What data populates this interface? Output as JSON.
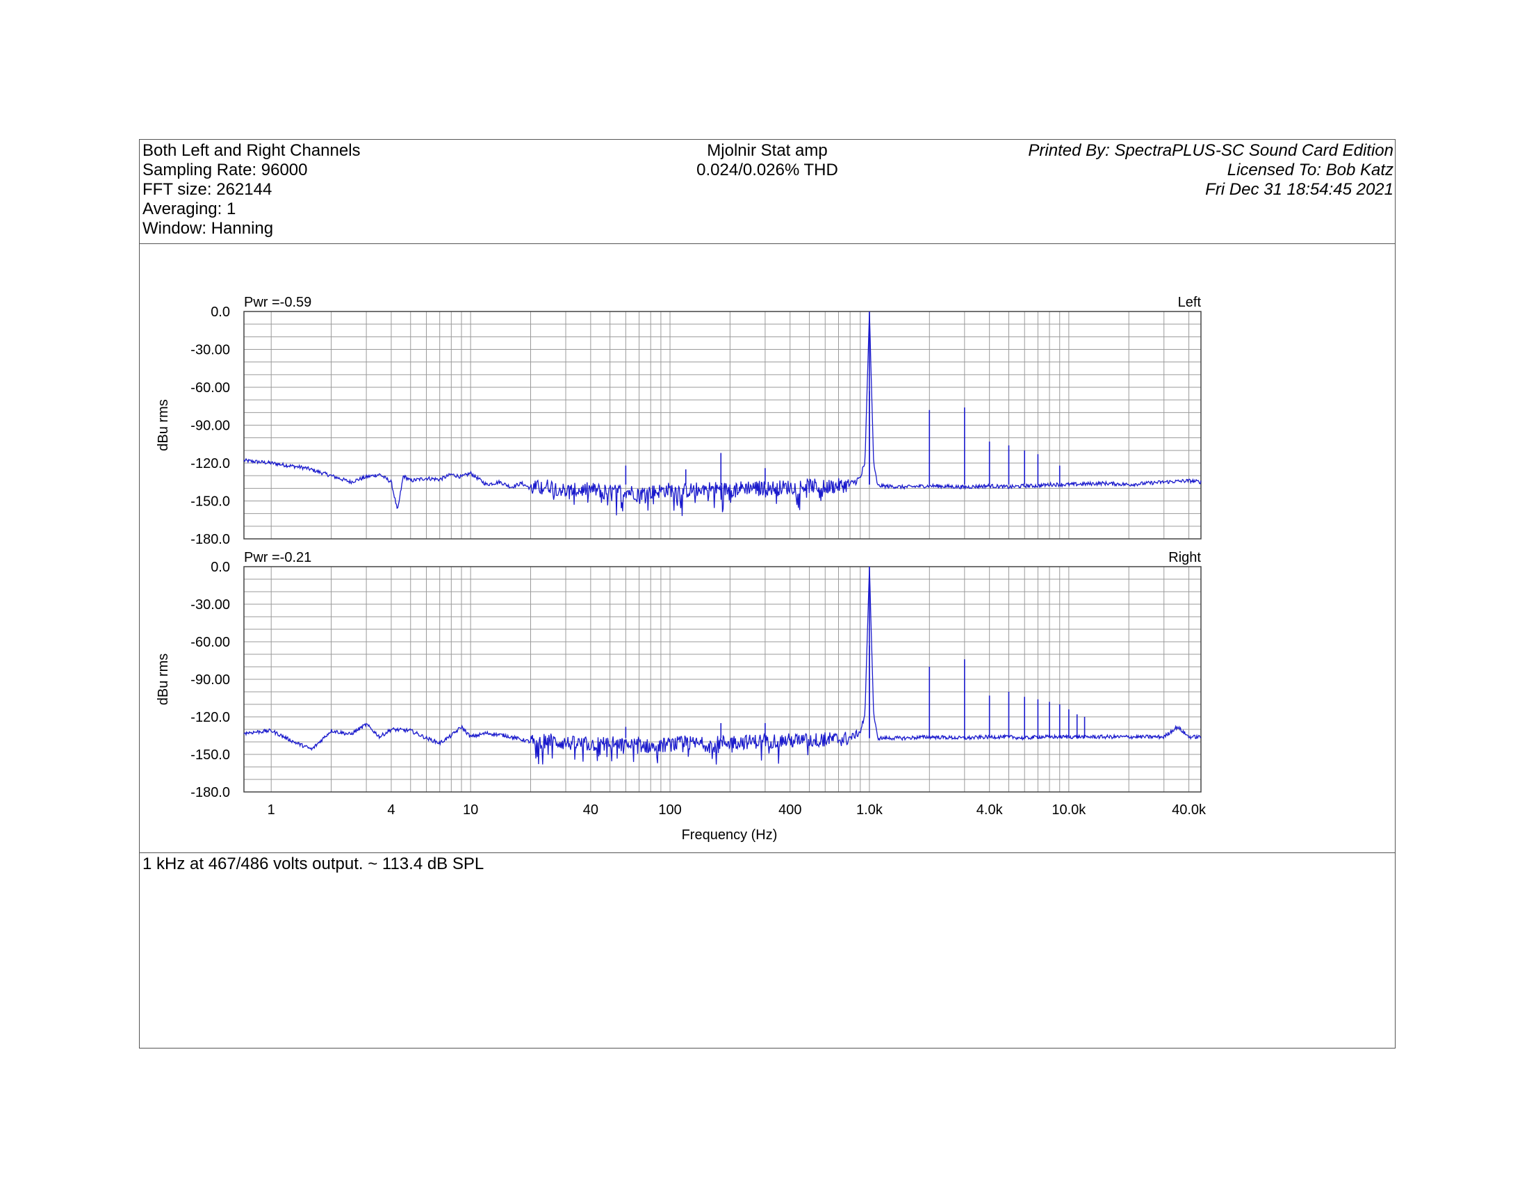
{
  "header": {
    "left": [
      "Both Left and Right Channels",
      "Sampling Rate: 96000",
      "FFT size: 262144",
      "Averaging: 1",
      "Window: Hanning"
    ],
    "center": [
      "Mjolnir Stat amp",
      "0.024/0.026% THD"
    ],
    "right": [
      "Printed By: SpectraPLUS-SC Sound Card Edition",
      "Licensed To: Bob Katz",
      "Fri Dec 31 18:54:45 2021"
    ]
  },
  "notes": "1 kHz at 467/486 volts output. ~ 113.4 dB SPL",
  "colors": {
    "trace": "#1a1acc",
    "grid": "#9a9a9a",
    "frame": "#444444"
  },
  "chart_data": [
    {
      "type": "line",
      "channel": "Left",
      "power_label": "Pwr =-0.59",
      "ylabel": "dBu rms",
      "xlabel": "",
      "xscale": "log",
      "xlim": [
        0.73,
        46000
      ],
      "ylim": [
        -180,
        0
      ],
      "yticks": [
        0,
        -30,
        -60,
        -90,
        -120,
        -150,
        -180
      ],
      "ytick_labels": [
        "0.0",
        "-30.00",
        "-60.00",
        "-90.00",
        "-120.0",
        "-150.0",
        "-180.0"
      ],
      "grid": true,
      "series": [
        {
          "x": [
            0.73,
            1,
            1.5,
            2,
            2.5,
            3,
            3.5,
            4,
            4.3,
            4.6,
            5,
            6,
            7,
            8,
            9,
            10,
            12,
            14,
            16,
            18,
            20,
            25,
            30,
            40,
            50,
            60,
            70,
            80,
            100,
            120,
            150,
            200,
            250,
            300,
            400,
            500,
            600,
            700,
            800,
            900,
            950,
            1000,
            1050,
            1100,
            1500,
            2000,
            3000,
            4000,
            5000,
            6000,
            7000,
            8000,
            10000,
            15000,
            20000,
            30000,
            40000,
            46000
          ],
          "y": [
            -118,
            -120,
            -124,
            -130,
            -135,
            -131,
            -129,
            -135,
            -158,
            -130,
            -134,
            -132,
            -133,
            -129,
            -131,
            -128,
            -137,
            -135,
            -139,
            -136,
            -140,
            -138,
            -142,
            -141,
            -143,
            -142,
            -144,
            -143,
            -141,
            -142,
            -140,
            -141,
            -139,
            -140,
            -139,
            -138,
            -139,
            -138,
            -137,
            -132,
            -120,
            0,
            -120,
            -138,
            -139,
            -138,
            -139,
            -138,
            -139,
            -138,
            -138,
            -137,
            -137,
            -136,
            -137,
            -135,
            -134,
            -135
          ]
        }
      ],
      "spikes": [
        {
          "x": 60,
          "y": -122
        },
        {
          "x": 120,
          "y": -125
        },
        {
          "x": 180,
          "y": -112
        },
        {
          "x": 300,
          "y": -124
        },
        {
          "x": 1000,
          "y": 0
        },
        {
          "x": 1000,
          "y": -63
        },
        {
          "x": 2000,
          "y": -78
        },
        {
          "x": 3000,
          "y": -76
        },
        {
          "x": 4000,
          "y": -103
        },
        {
          "x": 5000,
          "y": -106
        },
        {
          "x": 6000,
          "y": -110
        },
        {
          "x": 7000,
          "y": -113
        },
        {
          "x": 9000,
          "y": -122
        }
      ]
    },
    {
      "type": "line",
      "channel": "Right",
      "power_label": "Pwr =-0.21",
      "ylabel": "dBu rms",
      "xlabel": "Frequency (Hz)",
      "xscale": "log",
      "xlim": [
        0.73,
        46000
      ],
      "ylim": [
        -180,
        0
      ],
      "yticks": [
        0,
        -30,
        -60,
        -90,
        -120,
        -150,
        -180
      ],
      "ytick_labels": [
        "0.0",
        "-30.00",
        "-60.00",
        "-90.00",
        "-120.0",
        "-150.0",
        "-180.0"
      ],
      "xticks": [
        1,
        4,
        10,
        40,
        100,
        400,
        1000,
        4000,
        10000,
        40000
      ],
      "xtick_labels": [
        "1",
        "4",
        "10",
        "40",
        "100",
        "400",
        "1.0k",
        "4.0k",
        "10.0k",
        "40.0k"
      ],
      "grid": true,
      "series": [
        {
          "x": [
            0.73,
            1,
            1.3,
            1.6,
            2,
            2.5,
            3,
            3.5,
            4,
            5,
            6,
            7,
            8,
            9,
            10,
            12,
            15,
            20,
            25,
            30,
            40,
            50,
            60,
            70,
            80,
            100,
            120,
            150,
            200,
            250,
            300,
            400,
            500,
            600,
            700,
            800,
            900,
            950,
            1000,
            1050,
            1100,
            1500,
            2000,
            3000,
            4000,
            5000,
            6000,
            7000,
            8000,
            10000,
            15000,
            20000,
            30000,
            35000,
            40000,
            46000
          ],
          "y": [
            -133,
            -131,
            -140,
            -146,
            -131,
            -134,
            -126,
            -136,
            -130,
            -131,
            -137,
            -141,
            -135,
            -128,
            -136,
            -133,
            -135,
            -140,
            -139,
            -141,
            -142,
            -141,
            -143,
            -142,
            -144,
            -142,
            -141,
            -142,
            -140,
            -140,
            -139,
            -139,
            -139,
            -138,
            -138,
            -137,
            -132,
            -118,
            0,
            -118,
            -137,
            -137,
            -136,
            -137,
            -136,
            -136,
            -137,
            -136,
            -136,
            -136,
            -136,
            -136,
            -136,
            -128,
            -136,
            -136
          ]
        }
      ],
      "spikes": [
        {
          "x": 60,
          "y": -128
        },
        {
          "x": 180,
          "y": -125
        },
        {
          "x": 300,
          "y": -125
        },
        {
          "x": 1000,
          "y": 0
        },
        {
          "x": 1000,
          "y": -63
        },
        {
          "x": 2000,
          "y": -80
        },
        {
          "x": 3000,
          "y": -74
        },
        {
          "x": 4000,
          "y": -103
        },
        {
          "x": 5000,
          "y": -100
        },
        {
          "x": 6000,
          "y": -104
        },
        {
          "x": 7000,
          "y": -106
        },
        {
          "x": 8000,
          "y": -108
        },
        {
          "x": 9000,
          "y": -110
        },
        {
          "x": 10000,
          "y": -114
        },
        {
          "x": 11000,
          "y": -118
        },
        {
          "x": 12000,
          "y": -120
        }
      ]
    }
  ]
}
